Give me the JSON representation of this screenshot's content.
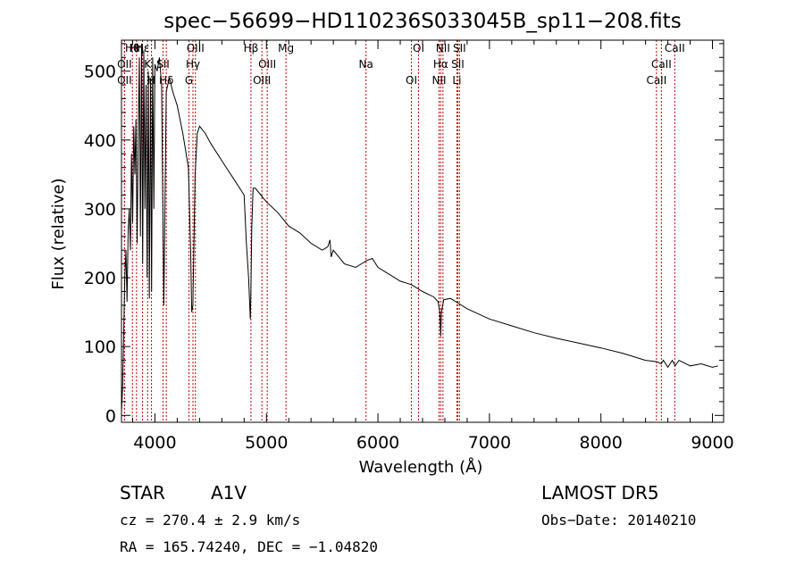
{
  "chart_data": {
    "type": "line",
    "title": "spec−56699−HD110236S033045B_sp11−208.fits",
    "xlabel": "Wavelength (Å)",
    "ylabel": "Flux (relative)",
    "xlim": [
      3700,
      9100
    ],
    "ylim": [
      -10,
      545
    ],
    "xticks": [
      4000,
      5000,
      6000,
      7000,
      8000,
      9000
    ],
    "yticks": [
      0,
      100,
      200,
      300,
      400,
      500
    ],
    "spectrum": {
      "x": [
        3700,
        3710,
        3720,
        3730,
        3740,
        3750,
        3760,
        3770,
        3780,
        3790,
        3800,
        3810,
        3820,
        3830,
        3840,
        3850,
        3860,
        3870,
        3880,
        3890,
        3900,
        3910,
        3920,
        3930,
        3940,
        3950,
        3960,
        3970,
        3980,
        3990,
        4000,
        4020,
        4040,
        4060,
        4080,
        4101,
        4115,
        4130,
        4160,
        4200,
        4250,
        4300,
        4320,
        4330,
        4340,
        4350,
        4360,
        4380,
        4400,
        4450,
        4500,
        4600,
        4700,
        4800,
        4820,
        4840,
        4855,
        4861,
        4868,
        4880,
        4900,
        4950,
        5000,
        5100,
        5200,
        5300,
        5400,
        5500,
        5550,
        5570,
        5580,
        5600,
        5700,
        5800,
        5900,
        5950,
        6000,
        6100,
        6200,
        6300,
        6400,
        6500,
        6540,
        6555,
        6563,
        6570,
        6590,
        6650,
        6700,
        6800,
        7000,
        7200,
        7400,
        7600,
        7800,
        8000,
        8200,
        8400,
        8500,
        8540,
        8560,
        8600,
        8640,
        8665,
        8700,
        8800,
        8900,
        9000,
        9050
      ],
      "y": [
        5,
        40,
        120,
        200,
        240,
        165,
        270,
        300,
        240,
        380,
        280,
        420,
        350,
        430,
        250,
        400,
        520,
        260,
        540,
        220,
        530,
        300,
        480,
        200,
        500,
        170,
        490,
        180,
        520,
        300,
        510,
        500,
        520,
        480,
        160,
        470,
        480,
        490,
        470,
        450,
        410,
        360,
        240,
        150,
        160,
        250,
        350,
        410,
        420,
        410,
        395,
        370,
        345,
        320,
        250,
        200,
        140,
        180,
        270,
        330,
        330,
        320,
        310,
        295,
        275,
        265,
        250,
        240,
        245,
        255,
        230,
        240,
        220,
        215,
        225,
        228,
        215,
        205,
        195,
        190,
        180,
        172,
        165,
        150,
        115,
        150,
        168,
        170,
        165,
        155,
        140,
        130,
        120,
        112,
        105,
        98,
        90,
        80,
        78,
        75,
        80,
        70,
        80,
        72,
        80,
        72,
        75,
        70,
        72
      ]
    },
    "line_markers": [
      {
        "label": "Hθ",
        "wl": 3798
      },
      {
        "label": "OII",
        "wl": 3727
      },
      {
        "label": "OII",
        "wl": 3727
      },
      {
        "label": "Hη",
        "wl": 3835
      },
      {
        "label": "K",
        "wl": 3934
      },
      {
        "label": "H",
        "wl": 3969
      },
      {
        "label": "Hε",
        "wl": 3889
      },
      {
        "label": "SII",
        "wl": 4072
      },
      {
        "label": "Hδ",
        "wl": 4102
      },
      {
        "label": "OIII",
        "wl": 4363
      },
      {
        "label": "Hγ",
        "wl": 4341
      },
      {
        "label": "G",
        "wl": 4305
      },
      {
        "label": "Hβ",
        "wl": 4861
      },
      {
        "label": "OIII",
        "wl": 5007
      },
      {
        "label": "OIII",
        "wl": 4959
      },
      {
        "label": "Mg",
        "wl": 5175
      },
      {
        "label": "Na",
        "wl": 5893
      },
      {
        "label": "OI",
        "wl": 6300
      },
      {
        "label": "OI",
        "wl": 6364
      },
      {
        "label": "Hα",
        "wl": 6563
      },
      {
        "label": "NII",
        "wl": 6548
      },
      {
        "label": "NII",
        "wl": 6583
      },
      {
        "label": "SII",
        "wl": 6716
      },
      {
        "label": "Li",
        "wl": 6708
      },
      {
        "label": "SII",
        "wl": 6731
      },
      {
        "label": "CaII",
        "wl": 8542
      },
      {
        "label": "CaII",
        "wl": 8498
      },
      {
        "label": "CaII",
        "wl": 8662
      }
    ]
  },
  "info": {
    "object_class": "STAR",
    "subclass": "A1V",
    "survey": "LAMOST DR5",
    "cz": "cz = 270.4 ± 2.9 km/s",
    "obs_date": "Obs−Date: 20140210",
    "coords": "RA = 165.74240, DEC =  −1.04820"
  },
  "colors": {
    "spectrum": "#000000",
    "marker_line": "#c00000",
    "axes": "#000000"
  }
}
